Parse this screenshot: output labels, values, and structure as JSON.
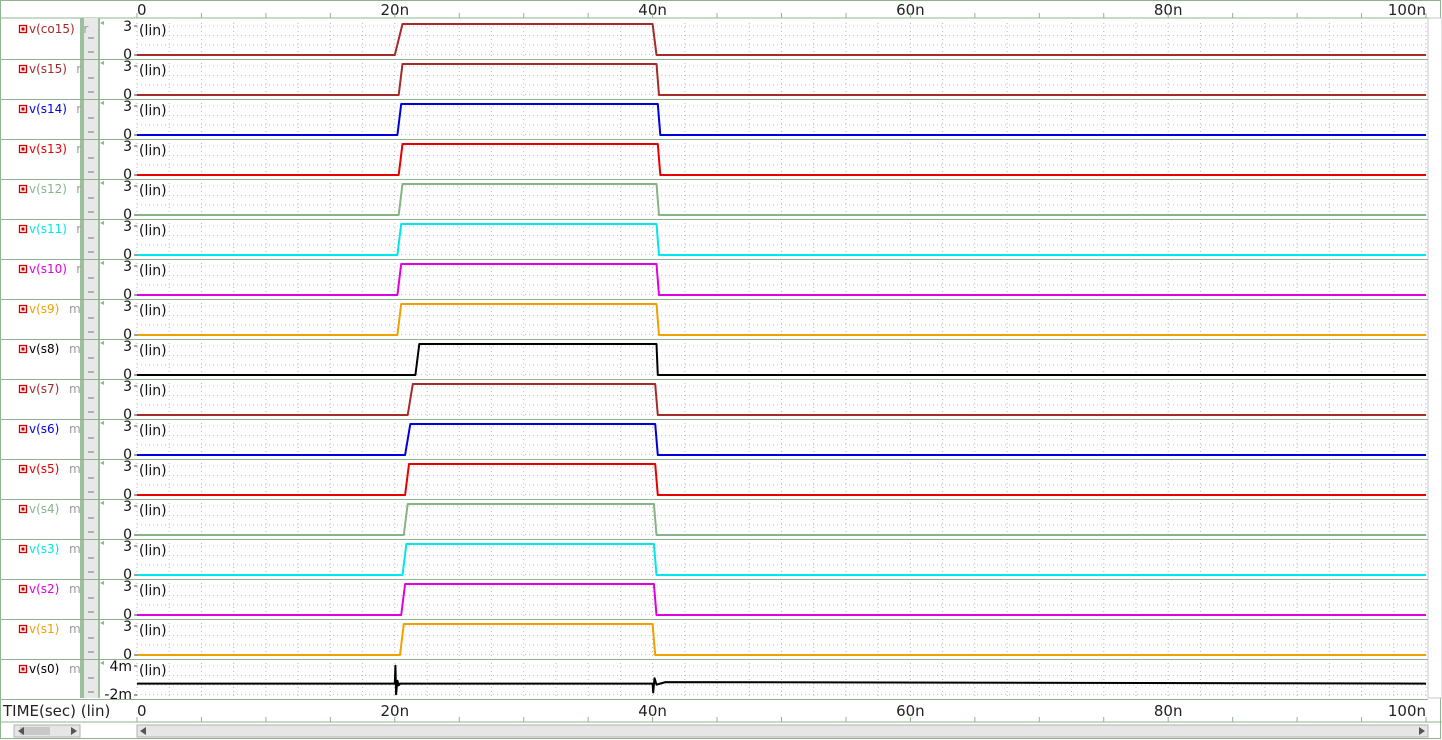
{
  "x_axis_title": "TIME(sec) (lin)",
  "panel_scale_label": "(lin)",
  "chart_data": {
    "type": "line",
    "x_unit_label": "TIME(sec) (lin)",
    "xlim": [
      0,
      100
    ],
    "x_tick_labels": [
      "0",
      "20n",
      "40n",
      "60n",
      "80n",
      "100n"
    ],
    "x_tick_values": [
      0,
      20,
      40,
      60,
      80,
      100
    ],
    "y_scale": "lin",
    "grid": true,
    "series": [
      {
        "name": "v(co15)",
        "suffix": "r",
        "color": "#a52a2a",
        "y_ticks": [
          "3",
          "0"
        ],
        "ylim": [
          0,
          3.3
        ],
        "x": [
          0,
          20,
          20.6,
          40,
          40.3,
          100
        ],
        "y": [
          0,
          0,
          3.3,
          3.3,
          0,
          0
        ]
      },
      {
        "name": "v(s15)",
        "suffix": "r",
        "color": "#a52a2a",
        "y_ticks": [
          "3",
          "0"
        ],
        "ylim": [
          0,
          3.3
        ],
        "x": [
          0,
          20.3,
          20.6,
          40.3,
          40.5,
          100
        ],
        "y": [
          0,
          0,
          3.3,
          3.3,
          0,
          0
        ]
      },
      {
        "name": "v(s14)",
        "suffix": "r",
        "color": "#0000dd",
        "y_ticks": [
          "3",
          "0"
        ],
        "ylim": [
          0,
          3.3
        ],
        "x": [
          0,
          20.2,
          20.5,
          40.4,
          40.6,
          100
        ],
        "y": [
          0,
          0,
          3.3,
          3.3,
          0,
          0
        ]
      },
      {
        "name": "v(s13)",
        "suffix": "r",
        "color": "#e60000",
        "y_ticks": [
          "3",
          "0"
        ],
        "ylim": [
          0,
          3.3
        ],
        "x": [
          0,
          20.3,
          20.6,
          40.4,
          40.6,
          100
        ],
        "y": [
          0,
          0,
          3.3,
          3.3,
          0,
          0
        ]
      },
      {
        "name": "v(s12)",
        "suffix": "r",
        "color": "#86b486",
        "y_ticks": [
          "3",
          "0"
        ],
        "ylim": [
          0,
          3.3
        ],
        "x": [
          0,
          20.3,
          20.6,
          40.3,
          40.5,
          100
        ],
        "y": [
          0,
          0,
          3.3,
          3.3,
          0,
          0
        ]
      },
      {
        "name": "v(s11)",
        "suffix": "r",
        "color": "#00e5ee",
        "y_ticks": [
          "3",
          "0"
        ],
        "ylim": [
          0,
          3.3
        ],
        "x": [
          0,
          20.2,
          20.5,
          40.3,
          40.5,
          100
        ],
        "y": [
          0,
          0,
          3.3,
          3.3,
          0,
          0
        ]
      },
      {
        "name": "v(s10)",
        "suffix": "r",
        "color": "#e000e0",
        "y_ticks": [
          "3",
          "0"
        ],
        "ylim": [
          0,
          3.3
        ],
        "x": [
          0,
          20.2,
          20.5,
          40.3,
          40.5,
          100
        ],
        "y": [
          0,
          0,
          3.3,
          3.3,
          0,
          0
        ]
      },
      {
        "name": "v(s9)",
        "suffix": "m",
        "color": "#f0a000",
        "y_ticks": [
          "3",
          "0"
        ],
        "ylim": [
          0,
          3.3
        ],
        "x": [
          0,
          20.2,
          20.5,
          40.3,
          40.5,
          100
        ],
        "y": [
          0,
          0,
          3.3,
          3.3,
          0,
          0
        ]
      },
      {
        "name": "v(s8)",
        "suffix": "m",
        "color": "#000000",
        "y_ticks": [
          "3",
          "0"
        ],
        "ylim": [
          0,
          3.3
        ],
        "x": [
          0,
          21.6,
          21.9,
          40.3,
          40.4,
          100
        ],
        "y": [
          0,
          0,
          3.3,
          3.3,
          0,
          0
        ]
      },
      {
        "name": "v(s7)",
        "suffix": "m",
        "color": "#a52a2a",
        "y_ticks": [
          "3",
          "0"
        ],
        "ylim": [
          0,
          3.3
        ],
        "x": [
          0,
          21.0,
          21.4,
          40.2,
          40.4,
          100
        ],
        "y": [
          0,
          0,
          3.3,
          3.3,
          0,
          0
        ]
      },
      {
        "name": "v(s6)",
        "suffix": "m",
        "color": "#0000dd",
        "y_ticks": [
          "3",
          "0"
        ],
        "ylim": [
          0,
          3.3
        ],
        "x": [
          0,
          20.8,
          21.2,
          40.2,
          40.4,
          100
        ],
        "y": [
          0,
          0,
          3.3,
          3.3,
          0,
          0
        ]
      },
      {
        "name": "v(s5)",
        "suffix": "m",
        "color": "#e60000",
        "y_ticks": [
          "3",
          "0"
        ],
        "ylim": [
          0,
          3.3
        ],
        "x": [
          0,
          20.8,
          21.1,
          40.2,
          40.4,
          100
        ],
        "y": [
          0,
          0,
          3.3,
          3.3,
          0,
          0
        ]
      },
      {
        "name": "v(s4)",
        "suffix": "m",
        "color": "#86b486",
        "y_ticks": [
          "3",
          "0"
        ],
        "ylim": [
          0,
          3.3
        ],
        "x": [
          0,
          20.7,
          21.0,
          40.1,
          40.3,
          100
        ],
        "y": [
          0,
          0,
          3.3,
          3.3,
          0,
          0
        ]
      },
      {
        "name": "v(s3)",
        "suffix": "m",
        "color": "#00e5ee",
        "y_ticks": [
          "3",
          "0"
        ],
        "ylim": [
          0,
          3.3
        ],
        "x": [
          0,
          20.6,
          20.9,
          40.1,
          40.3,
          100
        ],
        "y": [
          0,
          0,
          3.3,
          3.3,
          0,
          0
        ]
      },
      {
        "name": "v(s2)",
        "suffix": "m",
        "color": "#e000e0",
        "y_ticks": [
          "3",
          "0"
        ],
        "ylim": [
          0,
          3.3
        ],
        "x": [
          0,
          20.5,
          20.8,
          40.1,
          40.3,
          100
        ],
        "y": [
          0,
          0,
          3.3,
          3.3,
          0,
          0
        ]
      },
      {
        "name": "v(s1)",
        "suffix": "m",
        "color": "#f0a000",
        "y_ticks": [
          "3",
          "0"
        ],
        "ylim": [
          0,
          3.3
        ],
        "x": [
          0,
          20.4,
          20.7,
          40.0,
          40.2,
          100
        ],
        "y": [
          0,
          0,
          3.3,
          3.3,
          0,
          0
        ]
      },
      {
        "name": "v(s0)",
        "suffix": "m",
        "color": "#000000",
        "y_ticks": [
          "4m",
          "-2m"
        ],
        "ylim": [
          -3.5,
          5.5
        ],
        "x": [
          0,
          20.0,
          20.05,
          20.1,
          20.2,
          20.3,
          20.4,
          40.0,
          40.05,
          40.15,
          40.3,
          41,
          100
        ],
        "y": [
          0,
          0,
          5,
          -3,
          0.8,
          -0.5,
          0,
          0,
          -2.5,
          1.5,
          -0.3,
          0.4,
          0
        ]
      }
    ]
  }
}
